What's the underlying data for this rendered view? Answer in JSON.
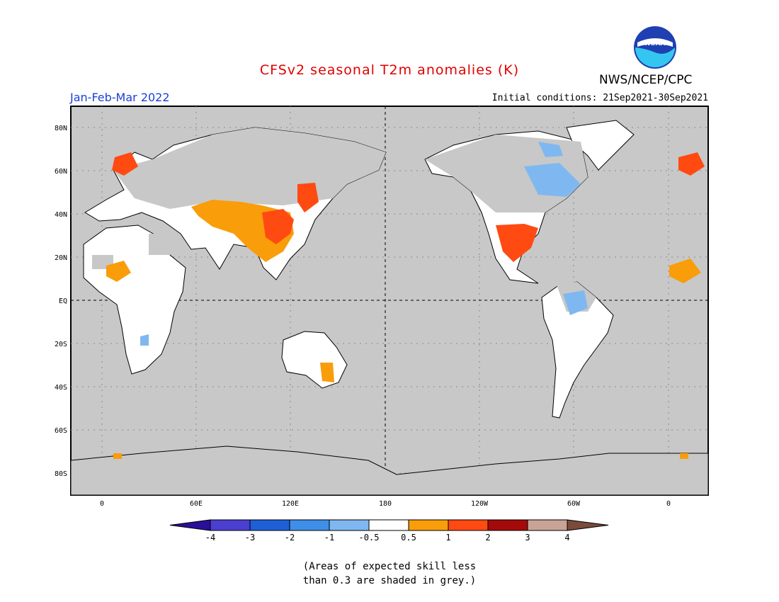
{
  "title": "CFSv2 seasonal T2m anomalies (K)",
  "season": "Jan-Feb-Mar 2022",
  "initial_conditions": "Initial conditions: 21Sep2021-30Sep2021",
  "organization": "NWS/NCEP/CPC",
  "logo_text": "NOAA",
  "footnote_line1": "(Areas of expected skill less",
  "footnote_line2": "than 0.3 are shaded in grey.)",
  "colors": {
    "title": "#e00000",
    "season": "#1a3fd8",
    "grey_land": "#c8c8c8",
    "ocean": "#c8c8c8"
  },
  "lat_labels": [
    "80N",
    "60N",
    "40N",
    "20N",
    "EQ",
    "20S",
    "40S",
    "60S",
    "80S"
  ],
  "lon_labels": [
    "0",
    "60E",
    "120E",
    "180",
    "120W",
    "60W",
    "0"
  ],
  "colorbar": {
    "tick_labels": [
      "-4",
      "-3",
      "-2",
      "-1",
      "-0.5",
      "0.5",
      "1",
      "2",
      "3",
      "4"
    ],
    "colors": [
      "#2a0f9a",
      "#4a3fd0",
      "#1e5fd8",
      "#3f8fe8",
      "#7fb8f0",
      "#ffffff",
      "#f99d0a",
      "#ff4a12",
      "#a50a0a",
      "#c9a496",
      "#7a4a3a"
    ]
  }
}
